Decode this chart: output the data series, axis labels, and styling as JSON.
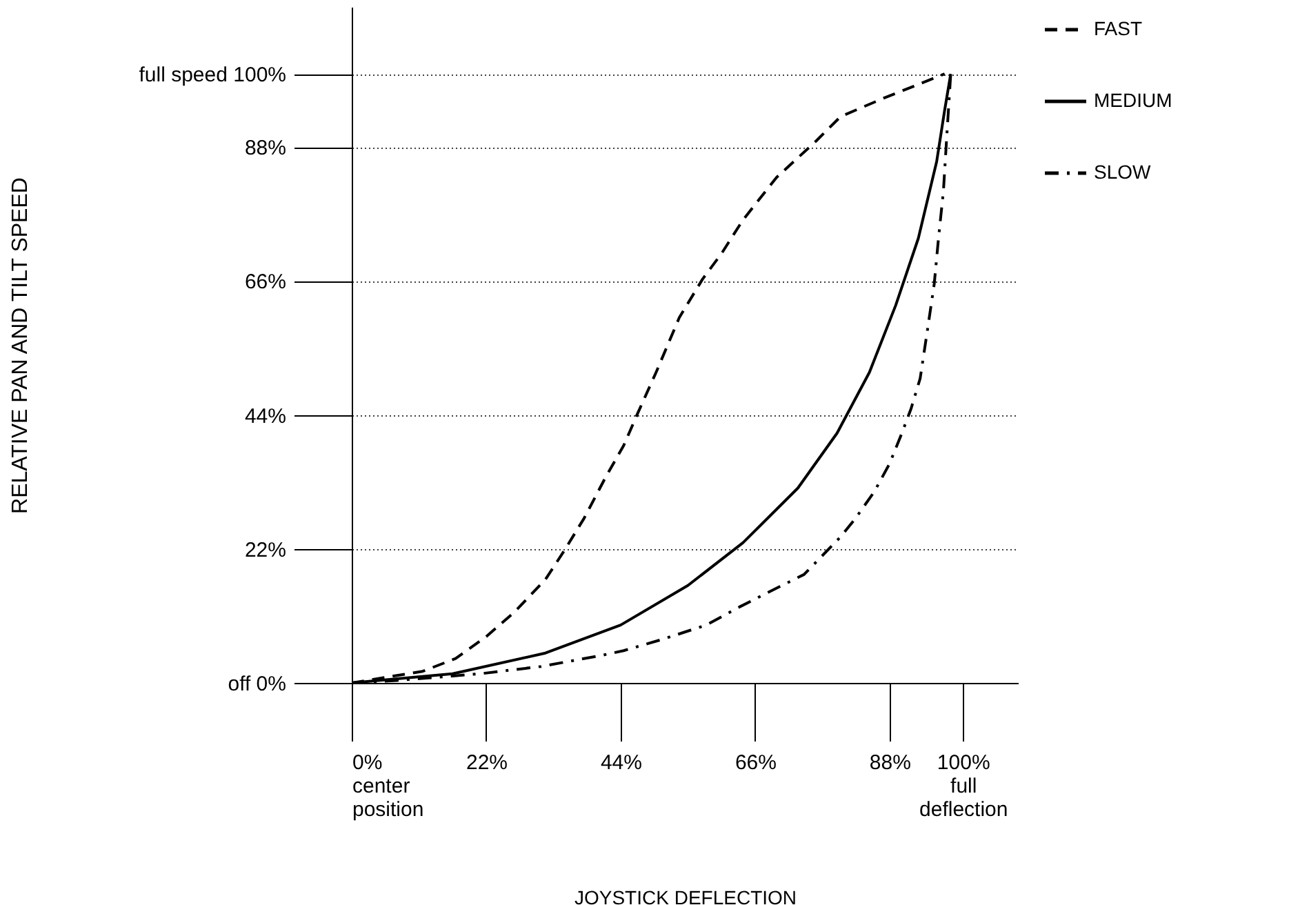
{
  "chart_data": {
    "type": "line",
    "xlabel": "JOYSTICK DEFLECTION",
    "ylabel": "RELATIVE PAN AND TILT SPEED",
    "xlim": [
      0,
      109
    ],
    "ylim": [
      0,
      111
    ],
    "xticks": [
      {
        "value": 0,
        "label": "0%\ncenter\nposition"
      },
      {
        "value": 22,
        "label": "22%"
      },
      {
        "value": 44,
        "label": "44%"
      },
      {
        "value": 66,
        "label": "66%"
      },
      {
        "value": 88,
        "label": "88%"
      },
      {
        "value": 100,
        "label": "100%\nfull\ndeflection"
      }
    ],
    "yticks": [
      {
        "value": 0,
        "label": "off      0%"
      },
      {
        "value": 22,
        "label": "22%"
      },
      {
        "value": 44,
        "label": "44%"
      },
      {
        "value": 66,
        "label": "66%"
      },
      {
        "value": 88,
        "label": "88%"
      },
      {
        "value": 100,
        "label": "full speed   100%"
      }
    ],
    "grid": "y",
    "legend": "right",
    "marker": "none",
    "series": [
      {
        "name": "FAST",
        "color": "#000000",
        "line_style": "dashed",
        "x": [
          0,
          11.6,
          17,
          22,
          26.7,
          31.7,
          34.7,
          38,
          41.5,
          44.5,
          46.8,
          49.8,
          53.6,
          57.4,
          60.5,
          64,
          69.5,
          76,
          80,
          87,
          92,
          97
        ],
        "values": [
          0,
          1.9,
          4,
          7.6,
          11.7,
          17,
          21.6,
          27,
          33.7,
          39,
          44.3,
          51,
          60,
          66.3,
          70.5,
          76,
          83,
          89,
          93,
          96,
          98,
          100
        ]
      },
      {
        "name": "MEDIUM",
        "color": "#000000",
        "line_style": "solid",
        "x": [
          0,
          16.5,
          31.7,
          44,
          55,
          64,
          73,
          79.4,
          84.7,
          89,
          92.7,
          95.7,
          97,
          98
        ],
        "values": [
          0,
          1.5,
          4.9,
          9.5,
          16,
          23,
          32,
          41,
          51,
          62,
          73,
          85.6,
          94,
          100
        ]
      },
      {
        "name": "SLOW",
        "color": "#000000",
        "line_style": "dashdot",
        "x": [
          0,
          7.4,
          21,
          31,
          40.8,
          44.5,
          51,
          58,
          63.5,
          68,
          74,
          80,
          82.4,
          85.5,
          88,
          90,
          91.5,
          93,
          94.2,
          95.3,
          96,
          96.8,
          97.4,
          98
        ],
        "values": [
          0,
          0.4,
          1.5,
          2.7,
          4.5,
          5.3,
          7.2,
          9.5,
          12.5,
          14.8,
          17.8,
          24,
          27,
          31.4,
          36,
          41,
          45,
          50,
          58,
          65.5,
          73,
          80.7,
          90.5,
          100
        ]
      }
    ]
  }
}
